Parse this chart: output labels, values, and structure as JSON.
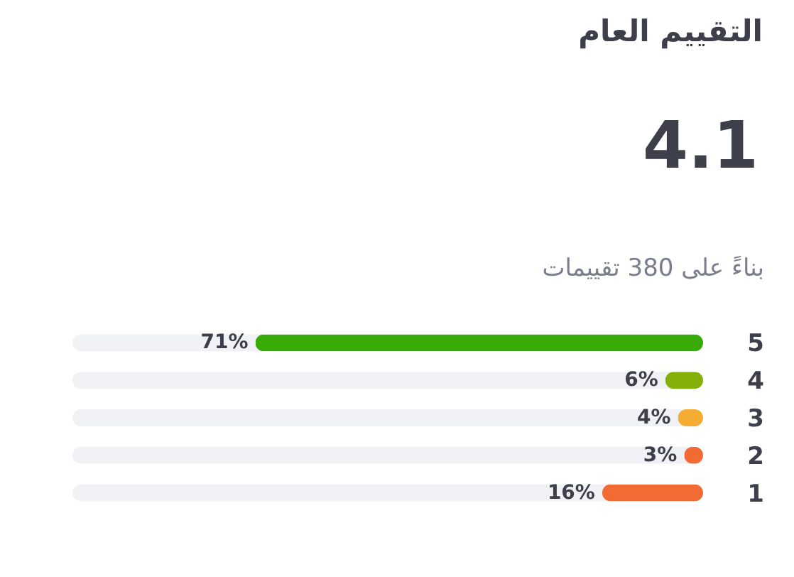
{
  "chart_data": {
    "type": "bar",
    "orientation": "horizontal",
    "title": "التقييم العام",
    "annotations": [
      "4.1",
      "بناءً على 380 تقييمات"
    ],
    "categories": [
      "5",
      "4",
      "3",
      "2",
      "1"
    ],
    "values": [
      71,
      6,
      4,
      3,
      16
    ],
    "colors": [
      "#38ab06",
      "#84b00a",
      "#f4ad32",
      "#f26b35",
      "#f26b35"
    ],
    "value_labels": [
      "71%",
      "6%",
      "4%",
      "3%",
      "16%"
    ],
    "xlim": [
      100,
      0
    ],
    "tick_labels": "y"
  }
}
